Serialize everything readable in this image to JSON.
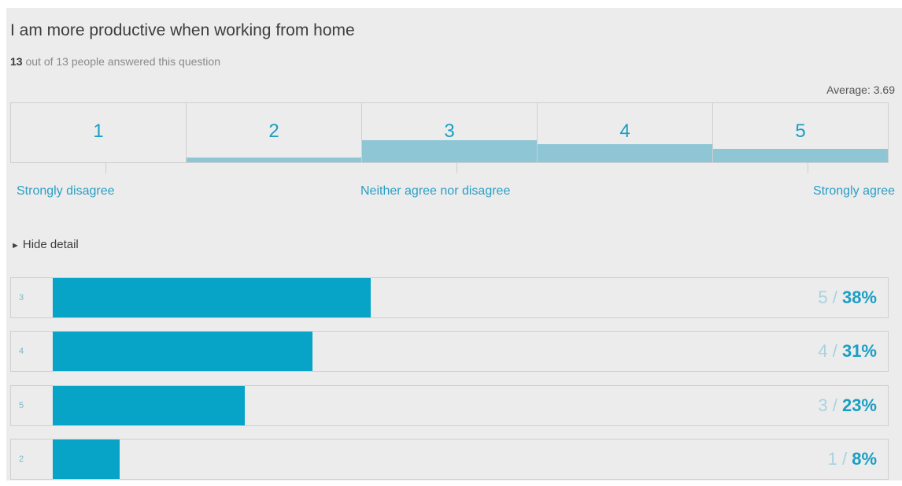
{
  "question": {
    "title": "I am more productive when working from home",
    "answered_count": "13",
    "answered_rest": "out of 13 people answered this question"
  },
  "average_label": "Average: 3.69",
  "scale": [
    {
      "label": "1",
      "share": 0.0
    },
    {
      "label": "2",
      "share": 0.08
    },
    {
      "label": "3",
      "share": 0.38
    },
    {
      "label": "4",
      "share": 0.31
    },
    {
      "label": "5",
      "share": 0.23
    }
  ],
  "anchors": {
    "low": "Strongly disagree",
    "mid": "Neither agree nor disagree",
    "high": "Strongly agree"
  },
  "toggle_label": "Hide detail",
  "detail_rows": [
    {
      "label": "3",
      "count": "5",
      "percent": "38%",
      "share": 0.38
    },
    {
      "label": "4",
      "count": "4",
      "percent": "31%",
      "share": 0.31
    },
    {
      "label": "5",
      "count": "3",
      "percent": "23%",
      "share": 0.23
    },
    {
      "label": "2",
      "count": "1",
      "percent": "8%",
      "share": 0.08
    }
  ],
  "colors": {
    "accent": "#07a4c7",
    "scale_fill": "#8fc6d5",
    "text": "#3d3d3d",
    "background": "#ececec"
  }
}
